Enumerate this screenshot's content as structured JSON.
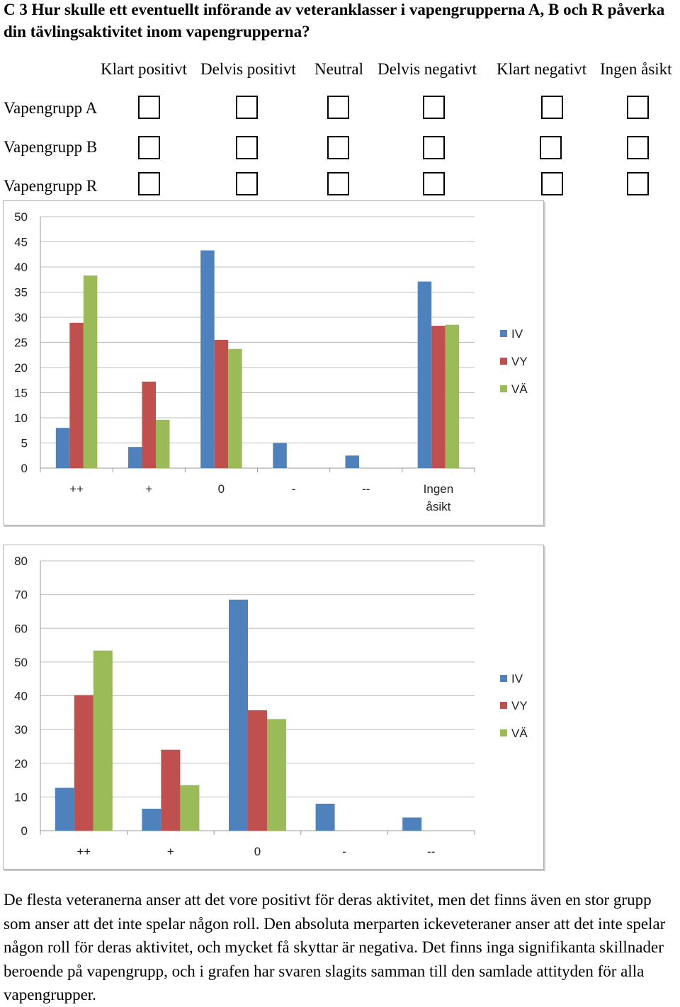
{
  "question": "C 3 Hur skulle ett eventuellt införande av veteranklasser i vapengrupperna A, B och R påverka din tävlingsaktivitet inom vapengrupperna?",
  "options": [
    "Klart positivt",
    "Delvis positivt",
    "Neutral",
    "Delvis negativt",
    "Klart negativt",
    "Ingen åsikt"
  ],
  "rows": [
    "Vapengrupp A",
    "Vapengrupp B",
    "Vapengrupp R"
  ],
  "colors": {
    "IV": "#4f81bd",
    "VY": "#c0504d",
    "VÄ": "#9bbb59",
    "grid": "#bfbfbf",
    "axis": "#999999"
  },
  "chart_data": [
    {
      "type": "bar",
      "categories": [
        "++",
        "+",
        "0",
        "-",
        "--",
        "Ingen åsikt"
      ],
      "series": [
        {
          "name": "IV",
          "values": [
            8,
            4.2,
            43.3,
            5,
            2.5,
            37.1
          ]
        },
        {
          "name": "VY",
          "values": [
            28.9,
            17.2,
            25.5,
            0,
            0,
            28.3
          ]
        },
        {
          "name": "VÄ",
          "values": [
            38.3,
            9.6,
            23.7,
            0,
            0,
            28.5
          ]
        }
      ],
      "ylim": [
        0,
        50
      ],
      "yticks": [
        0,
        5,
        10,
        15,
        20,
        25,
        30,
        35,
        40,
        45,
        50
      ],
      "grid": true,
      "legend": "right"
    },
    {
      "type": "bar",
      "categories": [
        "++",
        "+",
        "0",
        "-",
        "--"
      ],
      "series": [
        {
          "name": "IV",
          "values": [
            12.7,
            6.5,
            68.5,
            8,
            3.9
          ]
        },
        {
          "name": "VY",
          "values": [
            40.2,
            24,
            35.7,
            0,
            0
          ]
        },
        {
          "name": "VÄ",
          "values": [
            53.4,
            13.5,
            33.1,
            0,
            0
          ]
        }
      ],
      "ylim": [
        0,
        80
      ],
      "yticks": [
        0,
        10,
        20,
        30,
        40,
        50,
        60,
        70,
        80
      ],
      "grid": true,
      "legend": "right"
    }
  ],
  "paragraph": "De flesta veteranerna anser att det vore positivt för deras aktivitet, men det finns även en stor grupp som anser att det inte spelar någon roll. Den absoluta merparten ickeveteraner anser att det inte spelar någon roll för deras aktivitet, och mycket få skyttar är negativa. Det finns inga signifikanta skillnader beroende på vapengrupp, och i grafen har svaren slagits samman till den samlade attityden för alla vapengrupper."
}
